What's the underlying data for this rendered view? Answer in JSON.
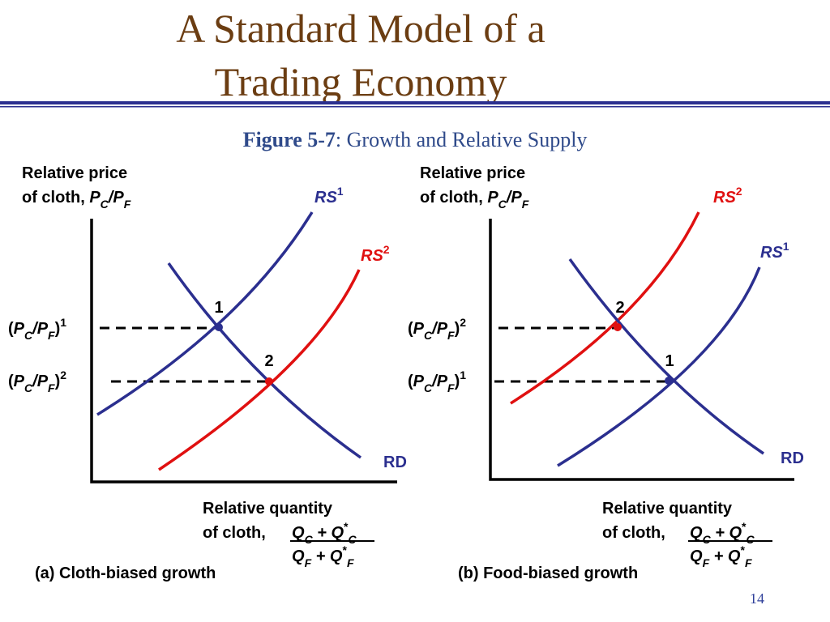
{
  "header": {
    "title_line1": "A Standard Model of a",
    "title_line2": "Trading Economy"
  },
  "figure": {
    "label": "Figure 5-7",
    "caption": ": Growth and Relative Supply"
  },
  "panels": [
    {
      "y_axis_label": {
        "line1": "Relative price",
        "line2": [
          "of cloth, ",
          "P",
          "C",
          "/P",
          "F"
        ]
      },
      "rs1": [
        "RS",
        "1"
      ],
      "rs2": [
        "RS",
        "2"
      ],
      "rd": "RD",
      "point1": "1",
      "point2": "2",
      "price_label_1": [
        "(",
        "P",
        "C",
        "/P",
        "F",
        ")",
        "1"
      ],
      "price_label_2": [
        "(",
        "P",
        "C",
        "/P",
        "F",
        ")",
        "2"
      ],
      "x_axis_label": {
        "line1": "Relative quantity",
        "line2": "of cloth, ",
        "numerator": [
          "Q",
          "C",
          " + Q",
          "*",
          "C"
        ],
        "denominator": [
          "Q",
          "F",
          " + Q",
          "*",
          "F"
        ]
      },
      "caption": "(a) Cloth-biased growth"
    },
    {
      "y_axis_label": {
        "line1": "Relative price",
        "line2": [
          "of cloth, ",
          "P",
          "C",
          "/P",
          "F"
        ]
      },
      "rs1": [
        "RS",
        "1"
      ],
      "rs2": [
        "RS",
        "2"
      ],
      "rd": "RD",
      "point1": "1",
      "point2": "2",
      "price_label_1": [
        "(",
        "P",
        "C",
        "/P",
        "F",
        ")",
        "1"
      ],
      "price_label_2": [
        "(",
        "P",
        "C",
        "/P",
        "F",
        ")",
        "2"
      ],
      "x_axis_label": {
        "line1": "Relative quantity",
        "line2": "of cloth, ",
        "numerator": [
          "Q",
          "C",
          " + Q",
          "*",
          "C"
        ],
        "denominator": [
          "Q",
          "F",
          " + Q",
          "*",
          "F"
        ]
      },
      "caption": "(b) Food-biased growth"
    }
  ],
  "page_number": "14"
}
